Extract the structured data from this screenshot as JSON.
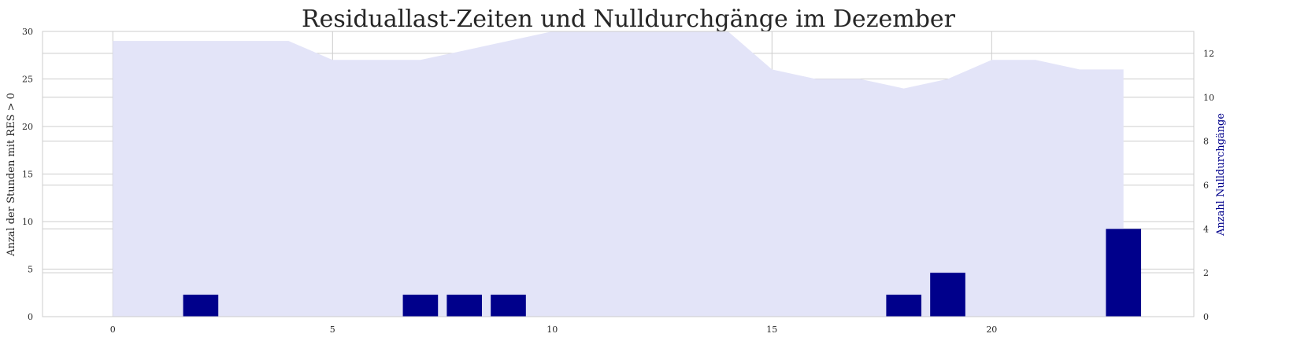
{
  "chart_data": {
    "type": "bar",
    "title": "Residuallast-Zeiten und Nulldurchgänge im Dezember",
    "xlabel": "",
    "ylabel_left": "Anzal der Stunden mit RES > 0",
    "ylabel_right": "Anzahl Nulldurchgänge",
    "xlim": [
      -1.6,
      24.6
    ],
    "ylim_left": [
      0,
      30
    ],
    "ylim_right": [
      0,
      13
    ],
    "x_ticks": [
      0,
      5,
      10,
      15,
      20
    ],
    "y_ticks_left": [
      0,
      5,
      10,
      15,
      20,
      25,
      30
    ],
    "y_ticks_right": [
      0,
      2,
      4,
      6,
      8,
      10,
      12
    ],
    "grid": true,
    "series": [
      {
        "kind": "area",
        "axis": "left",
        "color": "#e3e4f8",
        "x": [
          0,
          1,
          2,
          3,
          4,
          5,
          6,
          7,
          8,
          9,
          10,
          11,
          12,
          13,
          14,
          15,
          16,
          17,
          18,
          19,
          20,
          21,
          22,
          23
        ],
        "values": [
          29,
          29,
          29,
          29,
          29,
          27,
          27,
          27,
          28,
          29,
          30,
          30,
          30,
          30,
          30,
          26,
          25,
          25,
          24,
          25,
          27,
          27,
          26,
          26
        ]
      },
      {
        "kind": "bar",
        "axis": "right",
        "color": "#00008b",
        "x": [
          0,
          1,
          2,
          3,
          4,
          5,
          6,
          7,
          8,
          9,
          10,
          11,
          12,
          13,
          14,
          15,
          16,
          17,
          18,
          19,
          20,
          21,
          22,
          23
        ],
        "values": [
          0,
          0,
          1,
          0,
          0,
          0,
          0,
          1,
          1,
          1,
          0,
          0,
          0,
          0,
          0,
          0,
          0,
          0,
          1,
          2,
          0,
          0,
          0,
          4
        ]
      }
    ]
  }
}
